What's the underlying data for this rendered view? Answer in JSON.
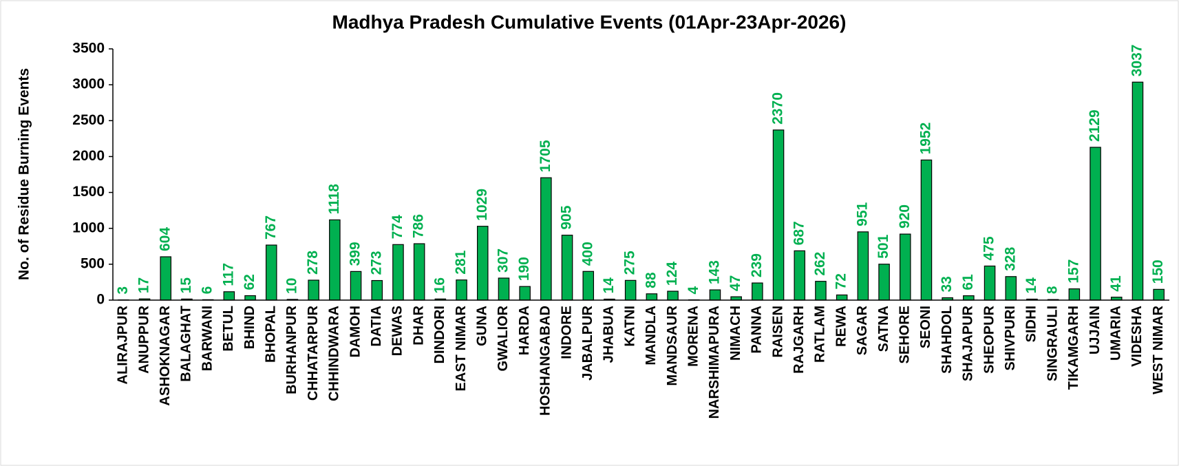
{
  "chart_data": {
    "type": "bar",
    "title": "Madhya Pradesh Cumulative Events (01Apr-23Apr-2026)",
    "ylabel": "No. of Residue Burning Events",
    "categories": [
      "ALIRAJPUR",
      "ANUPPUR",
      "ASHOKNAGAR",
      "BALAGHAT",
      "BARWANI",
      "BETUL",
      "BHIND",
      "BHOPAL",
      "BURHANPUR",
      "CHHATARPUR",
      "CHHINDWARA",
      "DAMOH",
      "DATIA",
      "DEWAS",
      "DHAR",
      "DINDORI",
      "EAST NIMAR",
      "GUNA",
      "GWALIOR",
      "HARDA",
      "HOSHANGABAD",
      "INDORE",
      "JABALPUR",
      "JHABUA",
      "KATNI",
      "MANDLA",
      "MANDSAUR",
      "MORENA",
      "NARSHIMAPURA",
      "NIMACH",
      "PANNA",
      "RAISEN",
      "RAJGARH",
      "RATLAM",
      "REWA",
      "SAGAR",
      "SATNA",
      "SEHORE",
      "SEONI",
      "SHAHDOL",
      "SHAJAPUR",
      "SHEOPUR",
      "SHIVPURI",
      "SIDHI",
      "SINGRAULI",
      "TIKAMGARH",
      "UJJAIN",
      "UMARIA",
      "VIDESHA",
      "WEST NIMAR"
    ],
    "values": [
      3,
      17,
      604,
      15,
      6,
      117,
      62,
      767,
      10,
      278,
      1118,
      399,
      273,
      774,
      786,
      16,
      281,
      1029,
      307,
      190,
      1705,
      905,
      400,
      14,
      275,
      88,
      124,
      4,
      143,
      47,
      239,
      2370,
      687,
      262,
      72,
      951,
      501,
      920,
      1952,
      33,
      61,
      475,
      328,
      14,
      8,
      157,
      2129,
      41,
      3037,
      150
    ],
    "color": "#00b050",
    "label_color": "#00b050",
    "ylim": [
      0,
      3500
    ],
    "yticks": [
      0,
      500,
      1000,
      1500,
      2000,
      2500,
      3000,
      3500
    ]
  }
}
